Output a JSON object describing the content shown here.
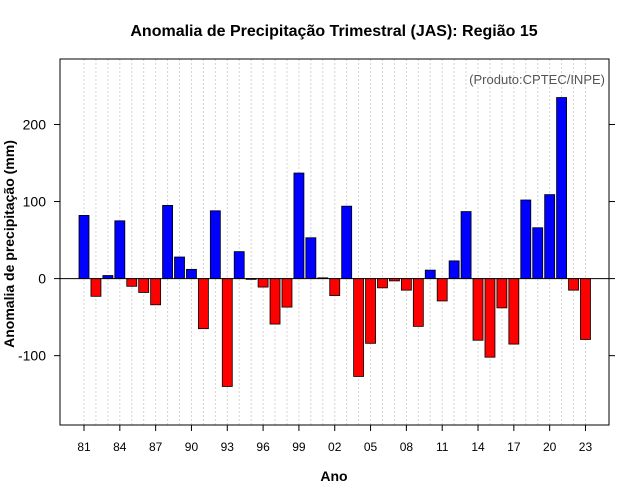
{
  "chart_data": {
    "type": "bar",
    "title": "Anomalia de Precipitação Trimestral (JAS): Região 15",
    "xlabel": "Ano",
    "ylabel": "Anomalia de precipitação (mm)",
    "annotation": "(Produto:CPTEC/INPE)",
    "ylim": [
      -190,
      285
    ],
    "yticks": [
      -100,
      0,
      100,
      200
    ],
    "ytick_labels": [
      "-100",
      "0",
      "100",
      "200"
    ],
    "x": [
      1981,
      1982,
      1983,
      1984,
      1985,
      1986,
      1987,
      1988,
      1989,
      1990,
      1991,
      1992,
      1993,
      1994,
      1995,
      1996,
      1997,
      1998,
      1999,
      2000,
      2001,
      2002,
      2003,
      2004,
      2005,
      2006,
      2007,
      2008,
      2009,
      2010,
      2011,
      2012,
      2013,
      2014,
      2015,
      2016,
      2017,
      2018,
      2019,
      2020,
      2021,
      2022,
      2023
    ],
    "values": [
      82,
      -23,
      4,
      75,
      -10,
      -18,
      -34,
      95,
      28,
      12,
      -65,
      88,
      -140,
      35,
      -1,
      -11,
      -59,
      -37,
      137,
      53,
      1,
      -22,
      94,
      -127,
      -84,
      -12,
      -3,
      -15,
      -62,
      11,
      -29,
      23,
      87,
      -80,
      -102,
      -38,
      -85,
      102,
      66,
      109,
      235,
      -15,
      -79
    ],
    "xticks": [
      1981,
      1984,
      1987,
      1990,
      1993,
      1996,
      1999,
      2002,
      2005,
      2008,
      2011,
      2014,
      2017,
      2020,
      2023
    ],
    "xtick_labels": [
      "81",
      "84",
      "87",
      "90",
      "93",
      "96",
      "99",
      "02",
      "05",
      "08",
      "11",
      "14",
      "17",
      "20",
      "23"
    ],
    "colors": {
      "positive": "#0000ff",
      "negative": "#ff0000",
      "outline": "#000000",
      "grid": "#d3d3d3"
    },
    "grid": "vertical-dotted",
    "baseline": 0
  }
}
